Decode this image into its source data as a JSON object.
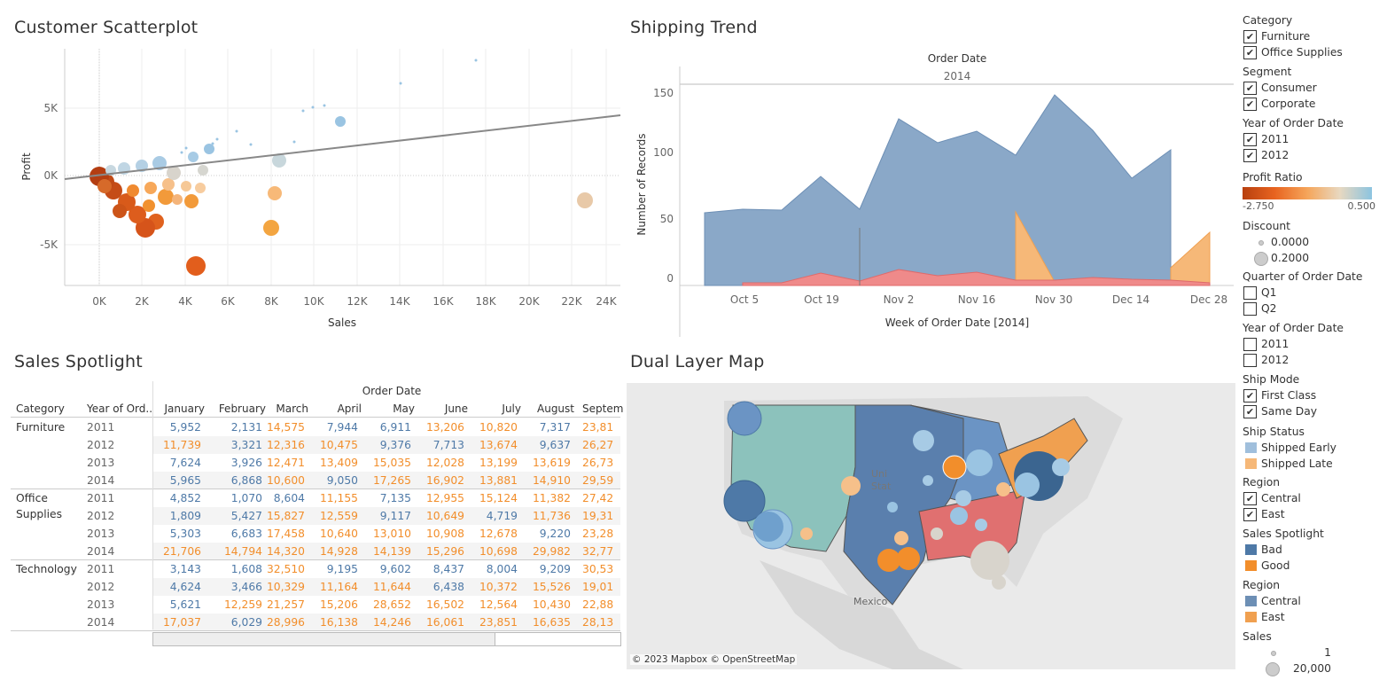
{
  "titles": {
    "scatter": "Customer Scatterplot",
    "shipping": "Shipping Trend",
    "sales": "Sales Spotlight",
    "map": "Dual Layer Map"
  },
  "scatter": {
    "xlabel": "Sales",
    "ylabel": "Profit",
    "xticks": [
      "0K",
      "2K",
      "4K",
      "6K",
      "8K",
      "10K",
      "12K",
      "14K",
      "16K",
      "18K",
      "20K",
      "22K",
      "24K"
    ],
    "yticks": [
      "5K",
      "0K",
      "-5K"
    ]
  },
  "shipping": {
    "top_header": "Order Date",
    "year": "2014",
    "ylabel": "Number of Records",
    "xlabel": "Week of Order Date [2014]",
    "yticks": [
      "150",
      "100",
      "50",
      "0"
    ],
    "xticks": [
      "Oct 5",
      "Oct 19",
      "Nov 2",
      "Nov 16",
      "Nov 30",
      "Dec 14",
      "Dec 28"
    ]
  },
  "table": {
    "top_header": "Order Date",
    "col_category": "Category",
    "col_year": "Year of Ord..",
    "months": [
      "January",
      "February",
      "March",
      "April",
      "May",
      "June",
      "July",
      "August",
      "Septem"
    ],
    "groups": [
      {
        "category": "Furniture",
        "rows": [
          {
            "year": "2011",
            "values": [
              "5,952",
              "2,131",
              "14,575",
              "7,944",
              "6,911",
              "13,206",
              "10,820",
              "7,317",
              "23,81"
            ],
            "flags": [
              "b",
              "b",
              "o",
              "b",
              "b",
              "o",
              "o",
              "b",
              "o"
            ]
          },
          {
            "year": "2012",
            "values": [
              "11,739",
              "3,321",
              "12,316",
              "10,475",
              "9,376",
              "7,713",
              "13,674",
              "9,637",
              "26,27"
            ],
            "flags": [
              "o",
              "b",
              "o",
              "o",
              "b",
              "b",
              "o",
              "b",
              "o"
            ]
          },
          {
            "year": "2013",
            "values": [
              "7,624",
              "3,926",
              "12,471",
              "13,409",
              "15,035",
              "12,028",
              "13,199",
              "13,619",
              "26,73"
            ],
            "flags": [
              "b",
              "b",
              "o",
              "o",
              "o",
              "o",
              "o",
              "o",
              "o"
            ]
          },
          {
            "year": "2014",
            "values": [
              "5,965",
              "6,868",
              "10,600",
              "9,050",
              "17,265",
              "16,902",
              "13,881",
              "14,910",
              "29,59"
            ],
            "flags": [
              "b",
              "b",
              "o",
              "b",
              "o",
              "o",
              "o",
              "o",
              "o"
            ]
          }
        ]
      },
      {
        "category": "Office\nSupplies",
        "rows": [
          {
            "year": "2011",
            "values": [
              "4,852",
              "1,070",
              "8,604",
              "11,155",
              "7,135",
              "12,955",
              "15,124",
              "11,382",
              "27,42"
            ],
            "flags": [
              "b",
              "b",
              "b",
              "o",
              "b",
              "o",
              "o",
              "o",
              "o"
            ]
          },
          {
            "year": "2012",
            "values": [
              "1,809",
              "5,427",
              "15,827",
              "12,559",
              "9,117",
              "10,649",
              "4,719",
              "11,736",
              "19,31"
            ],
            "flags": [
              "b",
              "b",
              "o",
              "o",
              "b",
              "o",
              "b",
              "o",
              "o"
            ]
          },
          {
            "year": "2013",
            "values": [
              "5,303",
              "6,683",
              "17,458",
              "10,640",
              "13,010",
              "10,908",
              "12,678",
              "9,220",
              "23,28"
            ],
            "flags": [
              "b",
              "b",
              "o",
              "o",
              "o",
              "o",
              "o",
              "b",
              "o"
            ]
          },
          {
            "year": "2014",
            "values": [
              "21,706",
              "14,794",
              "14,320",
              "14,928",
              "14,139",
              "15,296",
              "10,698",
              "29,982",
              "32,77"
            ],
            "flags": [
              "o",
              "o",
              "o",
              "o",
              "o",
              "o",
              "o",
              "o",
              "o"
            ]
          }
        ]
      },
      {
        "category": "Technology",
        "rows": [
          {
            "year": "2011",
            "values": [
              "3,143",
              "1,608",
              "32,510",
              "9,195",
              "9,602",
              "8,437",
              "8,004",
              "9,209",
              "30,53"
            ],
            "flags": [
              "b",
              "b",
              "o",
              "b",
              "b",
              "b",
              "b",
              "b",
              "o"
            ]
          },
          {
            "year": "2012",
            "values": [
              "4,624",
              "3,466",
              "10,329",
              "11,164",
              "11,644",
              "6,438",
              "10,372",
              "15,526",
              "19,01"
            ],
            "flags": [
              "b",
              "b",
              "o",
              "o",
              "o",
              "b",
              "o",
              "o",
              "o"
            ]
          },
          {
            "year": "2013",
            "values": [
              "5,621",
              "12,259",
              "21,257",
              "15,206",
              "28,652",
              "16,502",
              "12,564",
              "10,430",
              "22,88"
            ],
            "flags": [
              "b",
              "o",
              "o",
              "o",
              "o",
              "o",
              "o",
              "o",
              "o"
            ]
          },
          {
            "year": "2014",
            "values": [
              "17,037",
              "6,029",
              "28,996",
              "16,138",
              "14,246",
              "16,061",
              "23,851",
              "16,635",
              "28,13"
            ],
            "flags": [
              "o",
              "b",
              "o",
              "o",
              "o",
              "o",
              "o",
              "o",
              "o"
            ]
          }
        ]
      }
    ]
  },
  "map": {
    "credit": "© 2023 Mapbox © OpenStreetMap",
    "label_us": "Uni\nStat",
    "label_mexico": "Mexico"
  },
  "filters": [
    {
      "title": "Category",
      "kind": "check",
      "items": [
        {
          "label": "Furniture",
          "checked": true
        },
        {
          "label": "Office Supplies",
          "checked": true
        }
      ]
    },
    {
      "title": "Segment",
      "kind": "check",
      "items": [
        {
          "label": "Consumer",
          "checked": true
        },
        {
          "label": "Corporate",
          "checked": true
        }
      ]
    },
    {
      "title": "Year of Order Date",
      "kind": "check",
      "items": [
        {
          "label": "2011",
          "checked": true
        },
        {
          "label": "2012",
          "checked": true
        }
      ]
    },
    {
      "title": "Profit Ratio",
      "kind": "gradient",
      "items": [
        {
          "label": "-2.750"
        },
        {
          "label": "0.500"
        }
      ]
    },
    {
      "title": "Discount",
      "kind": "size",
      "items": [
        {
          "label": "0.0000"
        },
        {
          "label": "0.2000"
        }
      ]
    },
    {
      "title": "Quarter of Order Date",
      "kind": "check",
      "items": [
        {
          "label": "Q1",
          "checked": false
        },
        {
          "label": "Q2",
          "checked": false
        }
      ]
    },
    {
      "title": "Year of Order Date",
      "kind": "check",
      "items": [
        {
          "label": "2011",
          "checked": false
        },
        {
          "label": "2012",
          "checked": false
        }
      ]
    },
    {
      "title": "Ship Mode",
      "kind": "check",
      "items": [
        {
          "label": "First Class",
          "checked": true
        },
        {
          "label": "Same Day",
          "checked": true
        }
      ]
    },
    {
      "title": "Ship Status",
      "kind": "swatch",
      "items": [
        {
          "label": "Shipped Early",
          "color": "#a0bfdc"
        },
        {
          "label": "Shipped Late",
          "color": "#f6b878"
        }
      ]
    },
    {
      "title": "Region",
      "kind": "check",
      "items": [
        {
          "label": "Central",
          "checked": true
        },
        {
          "label": "East",
          "checked": true
        }
      ]
    },
    {
      "title": "Sales Spotlight",
      "kind": "swatch",
      "items": [
        {
          "label": "Bad",
          "color": "#4e79a7"
        },
        {
          "label": "Good",
          "color": "#f28e2b"
        }
      ]
    },
    {
      "title": "Region",
      "kind": "swatch",
      "items": [
        {
          "label": "Central",
          "color": "#6d8fb5"
        },
        {
          "label": "East",
          "color": "#f0a050"
        }
      ]
    },
    {
      "title": "Sales",
      "kind": "size",
      "items": [
        {
          "label": "1"
        },
        {
          "label": "20,000"
        }
      ]
    }
  ],
  "colors": {
    "blue": "#4e79a7",
    "orange": "#f28e2b",
    "area_blue": "#8aa8c8",
    "area_red": "#ef8a8a",
    "area_orange": "#f6b878"
  }
}
